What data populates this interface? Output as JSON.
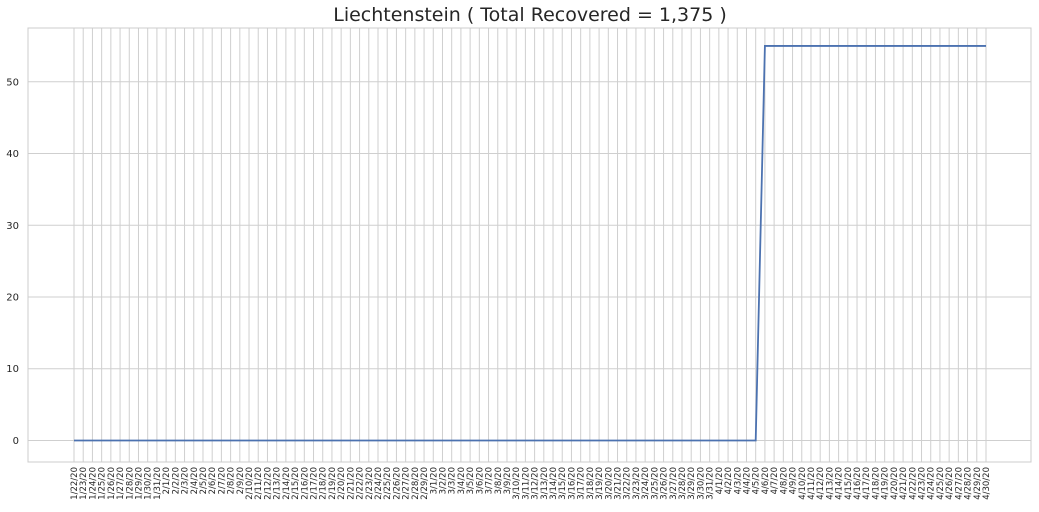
{
  "chart_data": {
    "type": "line",
    "title": "Liechtenstein ( Total Recovered = 1,375 )",
    "xlabel": "",
    "ylabel": "",
    "ylim": [
      -3,
      57.5
    ],
    "yticks": [
      0,
      10,
      20,
      30,
      40,
      50
    ],
    "grid": true,
    "legend": "none",
    "series_color": "#4c72b0",
    "x": [
      "1/22/20",
      "1/23/20",
      "1/24/20",
      "1/25/20",
      "1/26/20",
      "1/27/20",
      "1/28/20",
      "1/29/20",
      "1/30/20",
      "1/31/20",
      "2/1/20",
      "2/2/20",
      "2/3/20",
      "2/4/20",
      "2/5/20",
      "2/6/20",
      "2/7/20",
      "2/8/20",
      "2/9/20",
      "2/10/20",
      "2/11/20",
      "2/12/20",
      "2/13/20",
      "2/14/20",
      "2/15/20",
      "2/16/20",
      "2/17/20",
      "2/18/20",
      "2/19/20",
      "2/20/20",
      "2/21/20",
      "2/22/20",
      "2/23/20",
      "2/24/20",
      "2/25/20",
      "2/26/20",
      "2/27/20",
      "2/28/20",
      "2/29/20",
      "3/1/20",
      "3/2/20",
      "3/3/20",
      "3/4/20",
      "3/5/20",
      "3/6/20",
      "3/7/20",
      "3/8/20",
      "3/9/20",
      "3/10/20",
      "3/11/20",
      "3/12/20",
      "3/13/20",
      "3/14/20",
      "3/15/20",
      "3/16/20",
      "3/17/20",
      "3/18/20",
      "3/19/20",
      "3/20/20",
      "3/21/20",
      "3/22/20",
      "3/23/20",
      "3/24/20",
      "3/25/20",
      "3/26/20",
      "3/27/20",
      "3/28/20",
      "3/29/20",
      "3/30/20",
      "3/31/20",
      "4/1/20",
      "4/2/20",
      "4/3/20",
      "4/4/20",
      "4/5/20",
      "4/6/20",
      "4/7/20",
      "4/8/20",
      "4/9/20",
      "4/10/20",
      "4/11/20",
      "4/12/20",
      "4/13/20",
      "4/14/20",
      "4/15/20",
      "4/16/20",
      "4/17/20",
      "4/18/20",
      "4/19/20",
      "4/20/20",
      "4/21/20",
      "4/22/20",
      "4/23/20",
      "4/24/20",
      "4/25/20",
      "4/26/20",
      "4/27/20",
      "4/28/20",
      "4/29/20",
      "4/30/20"
    ],
    "values": [
      0,
      0,
      0,
      0,
      0,
      0,
      0,
      0,
      0,
      0,
      0,
      0,
      0,
      0,
      0,
      0,
      0,
      0,
      0,
      0,
      0,
      0,
      0,
      0,
      0,
      0,
      0,
      0,
      0,
      0,
      0,
      0,
      0,
      0,
      0,
      0,
      0,
      0,
      0,
      0,
      0,
      0,
      0,
      0,
      0,
      0,
      0,
      0,
      0,
      0,
      0,
      0,
      0,
      0,
      0,
      0,
      0,
      0,
      0,
      0,
      0,
      0,
      0,
      0,
      0,
      0,
      0,
      0,
      0,
      0,
      0,
      0,
      0,
      0,
      0,
      55,
      55,
      55,
      55,
      55,
      55,
      55,
      55,
      55,
      55,
      55,
      55,
      55,
      55,
      55,
      55,
      55,
      55,
      55,
      55,
      55,
      55,
      55,
      55,
      55
    ]
  }
}
